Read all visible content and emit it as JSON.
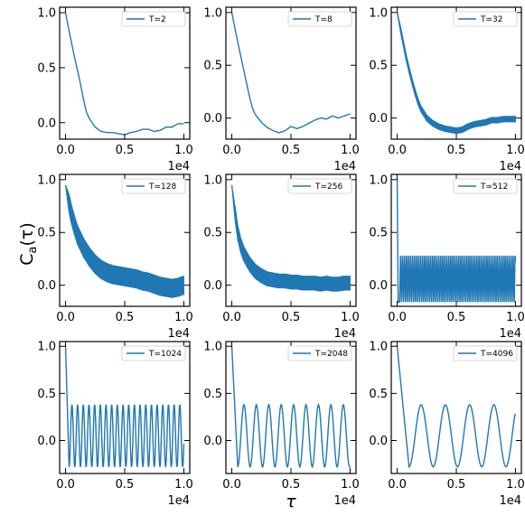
{
  "figure": {
    "ylabel": "C_a(τ)",
    "xlabel": "τ",
    "series_color": "#1f77b4"
  },
  "chart_data": [
    {
      "type": "line",
      "legend": "T=2",
      "xlim": [
        -500,
        10500
      ],
      "ylim": [
        -0.15,
        1.05
      ],
      "xticks": [
        0,
        5000,
        10000
      ],
      "xtick_labels": [
        "0.0",
        "0.5",
        "1.0"
      ],
      "x_multiplier": "1e4",
      "yticks": [
        0,
        0.5,
        1.0
      ],
      "ytick_labels": [
        "0.0",
        "0.5",
        "1.0"
      ],
      "x": [
        0,
        250,
        500,
        750,
        1000,
        1250,
        1500,
        1750,
        2000,
        2500,
        3000,
        3500,
        4000,
        4500,
        5000,
        5500,
        6000,
        6500,
        7000,
        7500,
        8000,
        8500,
        9000,
        9500,
        10000
      ],
      "y": [
        1.0,
        0.86,
        0.73,
        0.6,
        0.48,
        0.36,
        0.22,
        0.1,
        0.04,
        -0.04,
        -0.08,
        -0.09,
        -0.09,
        -0.1,
        -0.11,
        -0.09,
        -0.08,
        -0.06,
        -0.06,
        -0.08,
        -0.07,
        -0.04,
        -0.04,
        -0.01,
        -0.01
      ]
    },
    {
      "type": "line",
      "legend": "T=8",
      "xlim": [
        -500,
        10500
      ],
      "ylim": [
        -0.2,
        1.05
      ],
      "xticks": [
        0,
        5000,
        10000
      ],
      "xtick_labels": [
        "0.0",
        "0.5",
        "1.0"
      ],
      "x_multiplier": "1e4",
      "yticks": [
        0,
        0.5,
        1.0
      ],
      "ytick_labels": [
        "0.0",
        "0.5",
        "1.0"
      ],
      "x": [
        0,
        250,
        500,
        750,
        1000,
        1250,
        1500,
        1750,
        2000,
        2500,
        3000,
        3500,
        4000,
        4500,
        5000,
        5500,
        6000,
        6500,
        7000,
        7500,
        8000,
        8500,
        9000,
        9500,
        10000
      ],
      "y": [
        1.0,
        0.86,
        0.72,
        0.59,
        0.46,
        0.33,
        0.2,
        0.09,
        0.03,
        -0.04,
        -0.09,
        -0.12,
        -0.14,
        -0.12,
        -0.08,
        -0.1,
        -0.08,
        -0.05,
        -0.02,
        0.0,
        -0.01,
        0.02,
        0.0,
        0.02,
        0.04
      ]
    },
    {
      "type": "line",
      "legend": "T=32",
      "xlim": [
        -500,
        10500
      ],
      "ylim": [
        -0.2,
        1.05
      ],
      "xticks": [
        0,
        5000,
        10000
      ],
      "xtick_labels": [
        "0.0",
        "0.5",
        "1.0"
      ],
      "x_multiplier": "1e4",
      "yticks": [
        0,
        0.5,
        1.0
      ],
      "ytick_labels": [
        "0.0",
        "0.5",
        "1.0"
      ],
      "band": 0.06,
      "band_width_scale": 0.5,
      "x": [
        0,
        250,
        500,
        750,
        1000,
        1250,
        1500,
        1750,
        2000,
        2500,
        3000,
        3500,
        4000,
        4500,
        5000,
        5500,
        6000,
        6500,
        7000,
        7500,
        8000,
        8500,
        9000,
        9500,
        10000
      ],
      "y": [
        1.0,
        0.86,
        0.72,
        0.58,
        0.46,
        0.35,
        0.25,
        0.16,
        0.09,
        0.0,
        -0.05,
        -0.08,
        -0.1,
        -0.11,
        -0.12,
        -0.11,
        -0.08,
        -0.06,
        -0.05,
        -0.04,
        -0.02,
        -0.02,
        -0.01,
        -0.01,
        -0.01
      ]
    },
    {
      "type": "line",
      "legend": "T=128",
      "xlim": [
        -500,
        10500
      ],
      "ylim": [
        -0.2,
        1.05
      ],
      "xticks": [
        0,
        5000,
        10000
      ],
      "xtick_labels": [
        "0.0",
        "0.5",
        "1.0"
      ],
      "x_multiplier": "1e4",
      "yticks": [
        0,
        0.5,
        1.0
      ],
      "ytick_labels": [
        "0.0",
        "0.5",
        "1.0"
      ],
      "band": 0.18,
      "band_width_scale": 0.35,
      "x": [
        0,
        250,
        500,
        750,
        1000,
        1500,
        2000,
        2500,
        3000,
        3500,
        4000,
        4500,
        5000,
        5500,
        6000,
        6500,
        7000,
        7500,
        8000,
        8500,
        9000,
        9500,
        10000
      ],
      "y": [
        0.95,
        0.8,
        0.67,
        0.57,
        0.48,
        0.36,
        0.27,
        0.2,
        0.15,
        0.12,
        0.1,
        0.09,
        0.08,
        0.07,
        0.06,
        0.04,
        0.03,
        0.01,
        -0.01,
        -0.02,
        -0.03,
        -0.02,
        0.0
      ]
    },
    {
      "type": "line",
      "legend": "T=256",
      "xlim": [
        -500,
        10500
      ],
      "ylim": [
        -0.2,
        1.05
      ],
      "xticks": [
        0,
        5000,
        10000
      ],
      "xtick_labels": [
        "0.0",
        "0.5",
        "1.0"
      ],
      "x_multiplier": "1e4",
      "yticks": [
        0,
        0.5,
        1.0
      ],
      "ytick_labels": [
        "0.0",
        "0.5",
        "1.0"
      ],
      "band": 0.14,
      "band_width_scale": 0.15,
      "x": [
        0,
        250,
        500,
        750,
        1000,
        1500,
        2000,
        2500,
        3000,
        3500,
        4000,
        4500,
        5000,
        5500,
        6000,
        6500,
        7000,
        7500,
        8000,
        8500,
        9000,
        9500,
        10000
      ],
      "y": [
        0.95,
        0.7,
        0.5,
        0.38,
        0.3,
        0.2,
        0.13,
        0.09,
        0.06,
        0.05,
        0.04,
        0.04,
        0.03,
        0.03,
        0.02,
        0.02,
        0.02,
        0.01,
        0.02,
        0.01,
        0.01,
        0.02,
        0.02
      ]
    },
    {
      "type": "oscillation",
      "legend": "T=512",
      "xlim": [
        -500,
        10500
      ],
      "ylim": [
        -0.2,
        1.05
      ],
      "xticks": [
        0,
        5000,
        10000
      ],
      "xtick_labels": [
        "0.0",
        "0.5",
        "1.0"
      ],
      "x_multiplier": "1e4",
      "yticks": [
        0,
        0.5,
        1.0
      ],
      "ytick_labels": [
        "0.0",
        "0.5",
        "1.0"
      ],
      "initial": 1.0,
      "decay_end": 80,
      "osc_start": 200,
      "center": 0.06,
      "amplitude": 0.22,
      "period": 170,
      "x_end": 10000
    },
    {
      "type": "oscillation",
      "legend": "T=1024",
      "xlim": [
        -500,
        10500
      ],
      "ylim": [
        -0.35,
        1.05
      ],
      "xticks": [
        0,
        5000,
        10000
      ],
      "xtick_labels": [
        "0.0",
        "0.5",
        "1.0"
      ],
      "x_multiplier": "1e4",
      "yticks": [
        0,
        0.5,
        1.0
      ],
      "ytick_labels": [
        "0.0",
        "0.5",
        "1.0"
      ],
      "initial": 1.0,
      "decay_end": 300,
      "osc_start": 300,
      "center": 0.05,
      "amplitude": 0.33,
      "period": 480,
      "x_end": 10000
    },
    {
      "type": "oscillation",
      "legend": "T=2048",
      "xlim": [
        -500,
        10500
      ],
      "ylim": [
        -0.35,
        1.05
      ],
      "xticks": [
        0,
        5000,
        10000
      ],
      "xtick_labels": [
        "0.0",
        "0.5",
        "1.0"
      ],
      "x_multiplier": "1e4",
      "yticks": [
        0,
        0.5,
        1.0
      ],
      "ytick_labels": [
        "0.0",
        "0.5",
        "1.0"
      ],
      "initial": 1.0,
      "decay_end": 500,
      "osc_start": 500,
      "center": 0.05,
      "amplitude": 0.33,
      "period": 1050,
      "x_end": 10000
    },
    {
      "type": "oscillation",
      "legend": "T=4096",
      "xlim": [
        -500,
        10500
      ],
      "ylim": [
        -0.35,
        1.05
      ],
      "xticks": [
        0,
        5000,
        10000
      ],
      "xtick_labels": [
        "0.0",
        "0.5",
        "1.0"
      ],
      "x_multiplier": "1e4",
      "yticks": [
        0,
        0.5,
        1.0
      ],
      "ytick_labels": [
        "0.0",
        "0.5",
        "1.0"
      ],
      "initial": 1.0,
      "decay_end": 1000,
      "osc_start": 1000,
      "center": 0.05,
      "amplitude": 0.33,
      "period": 2050,
      "x_end": 10000
    }
  ]
}
